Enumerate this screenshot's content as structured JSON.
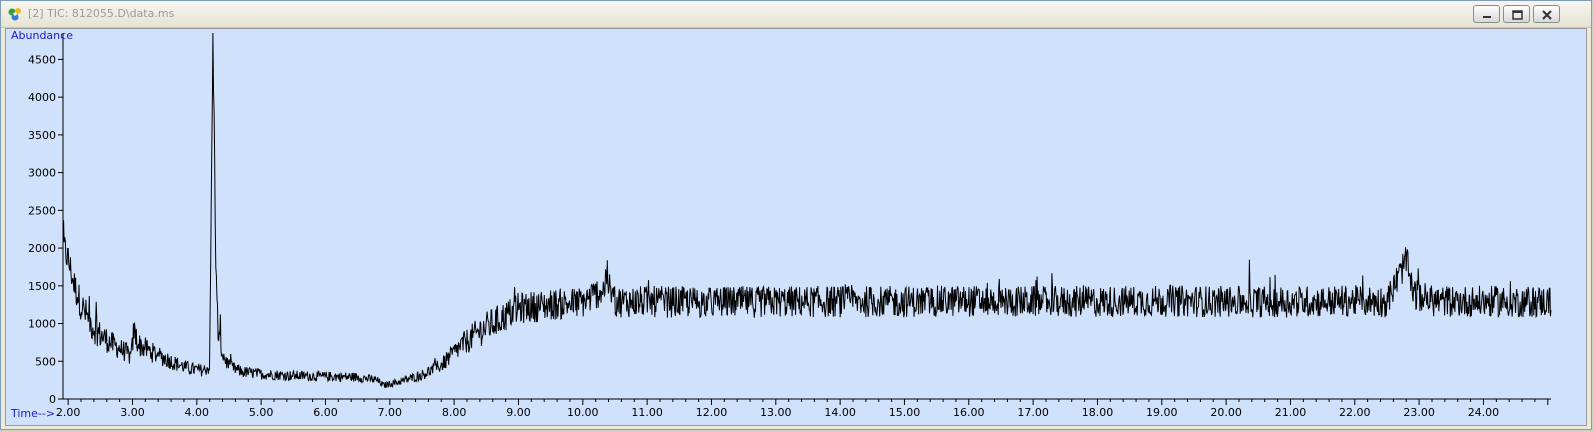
{
  "window": {
    "title": "[2] TIC: 812055.D\\data.ms",
    "buttons": [
      "minimize",
      "restore",
      "close"
    ]
  },
  "colors": {
    "plot_background": "#cfe1fb",
    "trace": "#000000",
    "axis_title": "#1a1acc",
    "title_text": "#9a9a9a"
  },
  "chart_data": {
    "type": "line",
    "title": "",
    "ylabel": "Abundance",
    "xlabel": "Time-->",
    "xlim": [
      1.92,
      25.05
    ],
    "ylim": [
      0,
      4850
    ],
    "x_ticks": [
      2,
      3,
      4,
      5,
      6,
      7,
      8,
      9,
      10,
      11,
      12,
      13,
      14,
      15,
      16,
      17,
      18,
      19,
      20,
      21,
      22,
      23,
      24
    ],
    "x_tick_labels": [
      "2.00",
      "3.00",
      "4.00",
      "5.00",
      "6.00",
      "7.00",
      "8.00",
      "9.00",
      "10.00",
      "11.00",
      "12.00",
      "13.00",
      "14.00",
      "15.00",
      "16.00",
      "17.00",
      "18.00",
      "19.00",
      "20.00",
      "21.00",
      "22.00",
      "23.00",
      "24.00"
    ],
    "y_ticks": [
      0,
      500,
      1000,
      1500,
      2000,
      2500,
      3000,
      3500,
      4000,
      4500
    ],
    "y_tick_labels": [
      "0",
      "500",
      "1000",
      "1500",
      "2000",
      "2500",
      "3000",
      "3500",
      "4000",
      "4500"
    ],
    "grid": false,
    "legend": "none",
    "series": [
      {
        "x": [
          1.92,
          2.0,
          2.1,
          2.2,
          2.35,
          2.5,
          2.7,
          2.9,
          2.98,
          3.02,
          3.1,
          3.3,
          3.5,
          3.7,
          3.9,
          4.1,
          4.2,
          4.25,
          4.27,
          4.3,
          4.33,
          4.4,
          4.5,
          4.7,
          5.0,
          5.5,
          6.0,
          6.5,
          6.8,
          6.9,
          7.0,
          7.2,
          7.5,
          7.8,
          8.1,
          8.4,
          8.7,
          9.0,
          9.5,
          10.0,
          10.4,
          10.5,
          11.0,
          12.0,
          13.0,
          14.0,
          15.0,
          16.0,
          17.0,
          18.0,
          19.0,
          20.0,
          21.0,
          22.0,
          22.5,
          22.7,
          22.8,
          22.9,
          23.2,
          24.0,
          25.0
        ],
        "y": [
          2050,
          1850,
          1500,
          1250,
          1000,
          850,
          720,
          620,
          550,
          900,
          720,
          620,
          540,
          460,
          400,
          380,
          420,
          4800,
          3600,
          1600,
          900,
          600,
          430,
          360,
          330,
          310,
          300,
          290,
          250,
          180,
          200,
          240,
          320,
          450,
          700,
          900,
          1050,
          1200,
          1250,
          1280,
          1500,
          1290,
          1290,
          1280,
          1290,
          1290,
          1290,
          1300,
          1290,
          1290,
          1300,
          1290,
          1290,
          1300,
          1290,
          1650,
          1850,
          1400,
          1300,
          1290,
          1290
        ]
      }
    ]
  }
}
